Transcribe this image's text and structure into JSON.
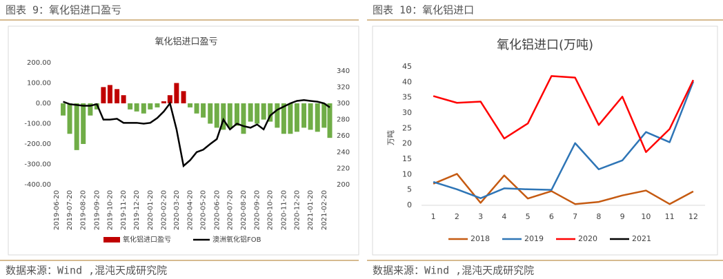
{
  "captions": [
    "图表 9：氧化铝进口盈亏",
    "图表 10：氧化铝进口"
  ],
  "sources": [
    "数据来源：Wind ,混沌天成研究院",
    "数据来源：Wind ,混沌天成研究院"
  ],
  "chart_data": [
    {
      "type": "combo",
      "title": "氧化铝进口盈亏",
      "x": [
        "2019-06-20",
        "2019-07-05",
        "2019-07-20",
        "2019-08-05",
        "2019-08-20",
        "2019-09-05",
        "2019-09-20",
        "2019-10-05",
        "2019-10-20",
        "2019-11-05",
        "2019-11-20",
        "2019-12-05",
        "2019-12-20",
        "2020-01-05",
        "2020-01-20",
        "2020-02-05",
        "2020-02-20",
        "2020-03-05",
        "2020-03-20",
        "2020-04-05",
        "2020-04-20",
        "2020-05-05",
        "2020-05-20",
        "2020-06-05",
        "2020-06-20",
        "2020-07-05",
        "2020-07-20",
        "2020-08-05",
        "2020-08-20",
        "2020-09-05",
        "2020-09-20",
        "2020-10-05",
        "2020-10-20",
        "2020-11-05",
        "2020-11-20",
        "2020-12-05",
        "2020-12-20",
        "2021-01-05",
        "2021-01-20",
        "2021-02-05",
        "2021-02-20",
        "2021-03-05"
      ],
      "xlim": [
        "2019-06-20",
        "2021-03-05"
      ],
      "xticks": [
        "2019-06-20",
        "2019-07-20",
        "2019-08-20",
        "2019-09-20",
        "2019-10-20",
        "2019-11-20",
        "2019-12-20",
        "2020-01-20",
        "2020-02-20",
        "2020-03-20",
        "2020-04-20",
        "2020-05-20",
        "2020-06-20",
        "2020-07-20",
        "2020-08-20",
        "2020-09-20",
        "2020-10-20",
        "2020-11-20",
        "2020-12-20",
        "2021-01-20",
        "2021-02-20"
      ],
      "ylim": [
        -400,
        200
      ],
      "yticks": [
        {
          "value": -400,
          "label": "-400.00"
        },
        {
          "value": -300,
          "label": "-300.00"
        },
        {
          "value": -200,
          "label": "-200.00"
        },
        {
          "value": -100,
          "label": "-100.00"
        },
        {
          "value": 0,
          "label": "0.00"
        },
        {
          "value": 100,
          "label": "100.00"
        },
        {
          "value": 200,
          "label": "200.00"
        }
      ],
      "y2lim": [
        200,
        350
      ],
      "y2ticks": [
        200,
        220,
        240,
        260,
        280,
        300,
        320,
        340
      ],
      "grid": false,
      "series": [
        {
          "name": "氧化铝进口盈亏",
          "type": "bar",
          "color": "#c00000",
          "negative_color": "#70ad47",
          "values": [
            null,
            -60,
            -150,
            -230,
            -200,
            -60,
            -30,
            80,
            90,
            70,
            40,
            -30,
            -40,
            -50,
            -30,
            -20,
            10,
            40,
            100,
            60,
            -20,
            -50,
            -70,
            -100,
            -120,
            -130,
            -120,
            -110,
            -150,
            -90,
            -100,
            -80,
            -90,
            -120,
            -150,
            -150,
            -140,
            -120,
            -130,
            -140,
            -120,
            -170
          ]
        },
        {
          "name": "澳洲氧化铝FOB",
          "type": "line",
          "axis": "y2",
          "color": "#000000",
          "values": [
            null,
            302,
            299,
            298,
            297,
            297,
            299,
            280,
            280,
            281,
            276,
            276,
            276,
            275,
            276,
            282,
            290,
            300,
            268,
            223,
            230,
            240,
            243,
            250,
            256,
            280,
            268,
            275,
            272,
            270,
            274,
            268,
            285,
            292,
            296,
            300,
            303,
            304,
            303,
            302,
            300,
            295
          ]
        }
      ]
    },
    {
      "type": "line",
      "title": "氧化铝进口(万吨)",
      "y_label": "万吨",
      "categories": [
        "1",
        "2",
        "3",
        "4",
        "5",
        "6",
        "7",
        "8",
        "9",
        "10",
        "11",
        "12"
      ],
      "ylim": [
        0,
        45
      ],
      "yticks": [
        0,
        5,
        10,
        15,
        20,
        25,
        30,
        35,
        40,
        45
      ],
      "grid": false,
      "series": [
        {
          "name": "2018",
          "color": "#c55a11",
          "values": [
            7,
            10.2,
            0.8,
            9.7,
            2.2,
            4.6,
            0.4,
            1.1,
            3.2,
            4.8,
            0.4,
            4.5
          ]
        },
        {
          "name": "2019",
          "color": "#2e75b6",
          "values": [
            7.6,
            5.2,
            2.3,
            5.5,
            5.2,
            5.0,
            20.2,
            11.7,
            14.6,
            23.8,
            20.5,
            40.2
          ]
        },
        {
          "name": "2020",
          "color": "#ff0000",
          "values": [
            35.5,
            33.3,
            33.7,
            21.7,
            26.6,
            42,
            41.5,
            26.1,
            35.3,
            17.3,
            24.8,
            40.7
          ]
        },
        {
          "name": "2021",
          "color": "#000000",
          "values": [
            null,
            null,
            null,
            null,
            null,
            null,
            null,
            null,
            null,
            null,
            null,
            null
          ]
        }
      ]
    }
  ]
}
